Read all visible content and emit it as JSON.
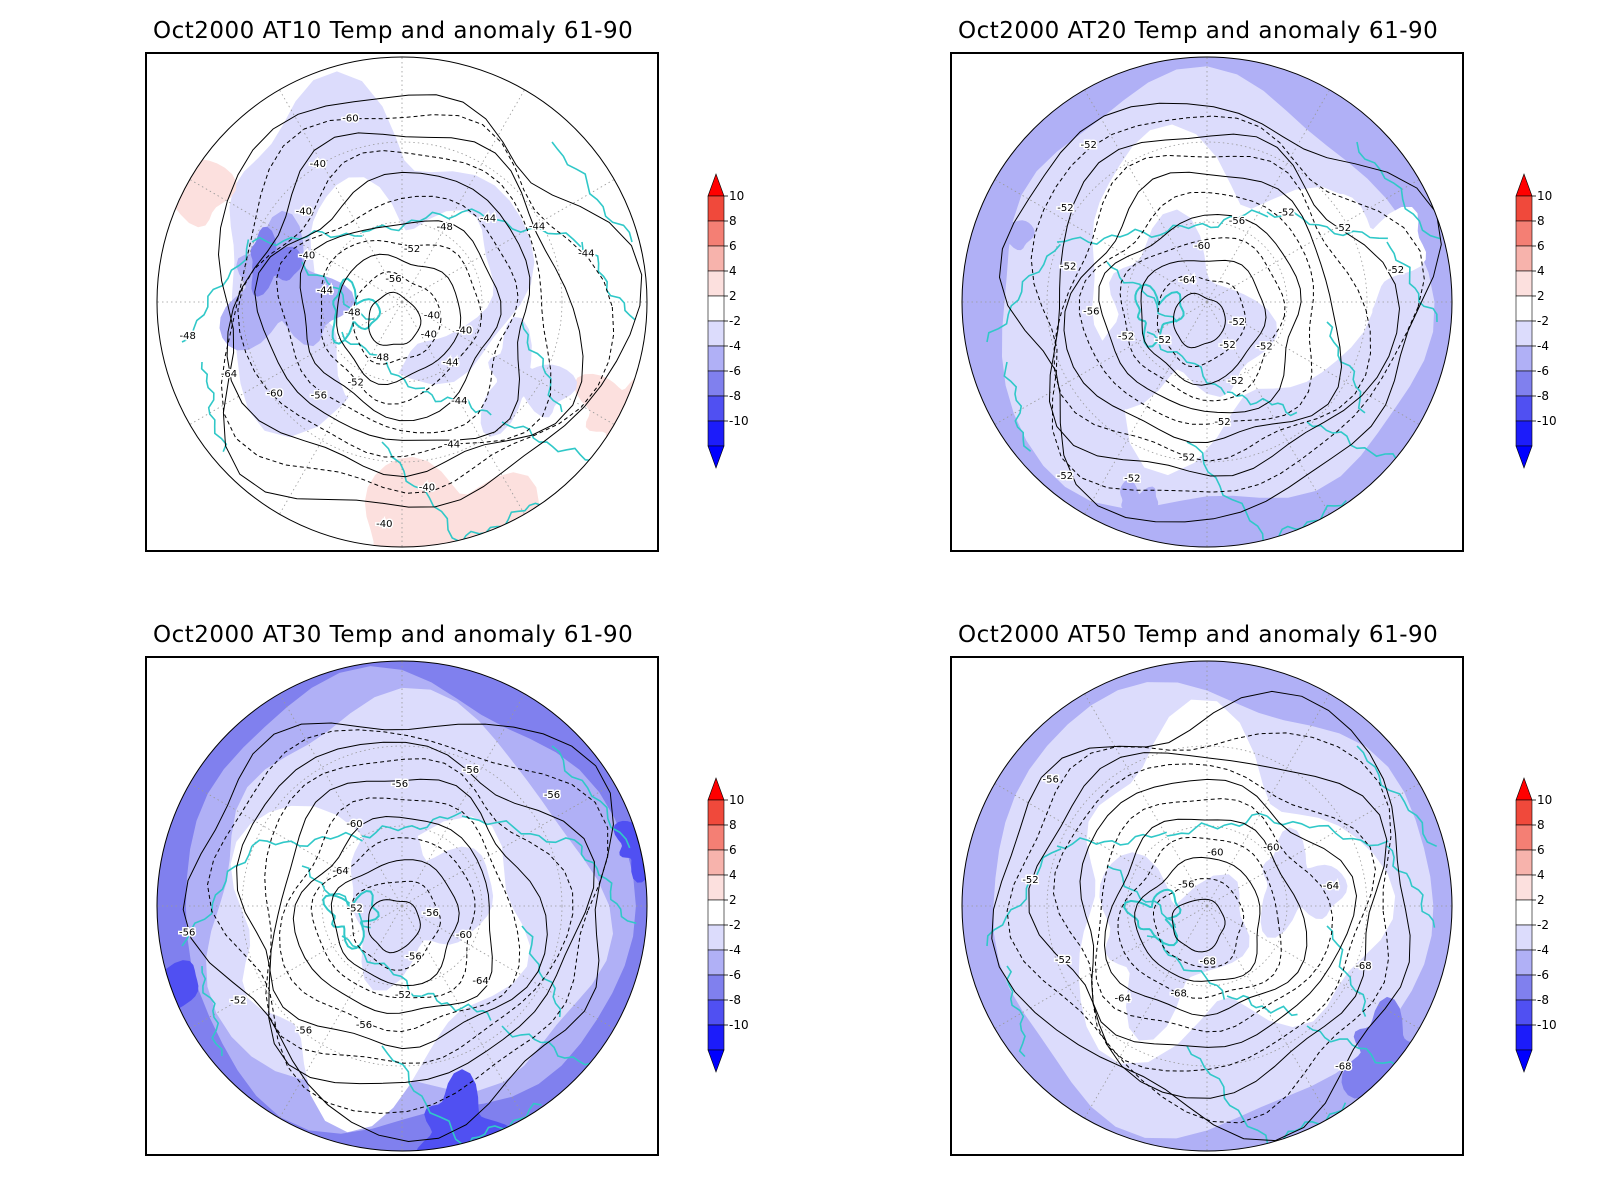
{
  "panels": [
    {
      "title": "Oct2000 AT10 Temp and anomaly 61-90",
      "contour_labels": [
        "-40",
        "-44",
        "-44",
        "-44",
        "-40",
        "-40",
        "-48",
        "-52",
        "-56",
        "-60",
        "-64",
        "-48",
        "-48",
        "-44",
        "-40",
        "-40",
        "-40",
        "-60",
        "-56",
        "-52",
        "-48",
        "-44",
        "-44",
        "-44",
        "-40",
        "-40"
      ],
      "anomaly_scheme": "warm-west-cool-ring"
    },
    {
      "title": "Oct2000 AT20 Temp and anomaly 61-90",
      "contour_labels": [
        "-52",
        "-52",
        "-52",
        "-52",
        "-52",
        "-52",
        "-52",
        "-52",
        "-56",
        "-52",
        "-52",
        "-52",
        "-64",
        "-60",
        "-56",
        "-52",
        "-52",
        "-52",
        "-52",
        "-52"
      ],
      "anomaly_scheme": "cool-outer-ring"
    },
    {
      "title": "Oct2000 AT30 Temp and anomaly 61-90",
      "contour_labels": [
        "-56",
        "-52",
        "-56",
        "-56",
        "-52",
        "-56",
        "-52",
        "-64",
        "-60",
        "-56",
        "-56",
        "-56",
        "-56",
        "-60",
        "-64"
      ],
      "anomaly_scheme": "strong-cool-ring"
    },
    {
      "title": "Oct2000 AT50 Temp and anomaly 61-90",
      "contour_labels": [
        "-68",
        "-68",
        "-64",
        "-52",
        "-52",
        "-56",
        "-56",
        "-60",
        "-60",
        "-64",
        "-68",
        "-68"
      ],
      "anomaly_scheme": "cool-ring-white-center"
    }
  ],
  "colorbar": {
    "levels": [
      "10",
      "8",
      "6",
      "4",
      "2",
      "-2",
      "-4",
      "-6",
      "-8",
      "-10"
    ],
    "colors": [
      "#ff0000",
      "#f0493b",
      "#f47f74",
      "#f7b3ac",
      "#fce0de",
      "#ffffff",
      "#dcdcfc",
      "#b0b0f6",
      "#8080ee",
      "#5050f2",
      "#1c1cfa",
      "#0000ff"
    ]
  },
  "colors": {
    "coastline": "#30c8c8",
    "contour": "#000000",
    "grid": "#999999"
  }
}
